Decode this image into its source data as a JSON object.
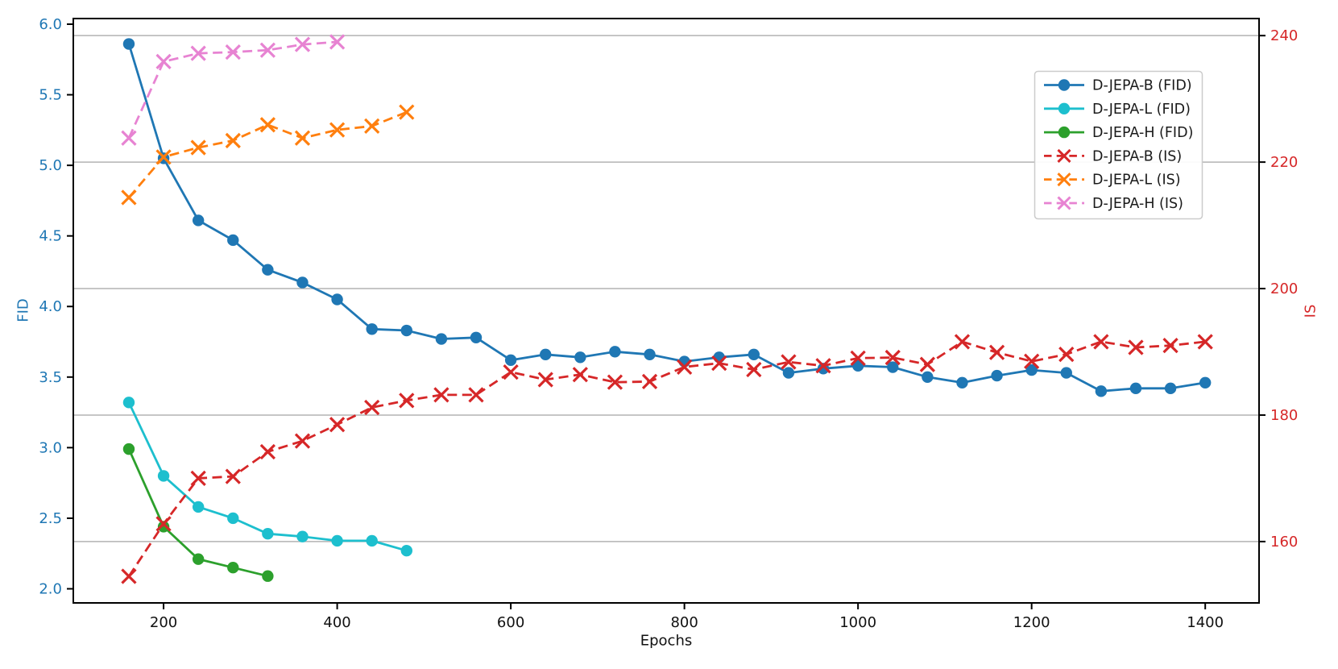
{
  "chart_data": {
    "type": "line",
    "title": "",
    "xlabel": "Epochs",
    "ylabel_left": "FID",
    "ylabel_right": "IS",
    "xlim": [
      96,
      1462
    ],
    "ylim_left": [
      1.9,
      6.04
    ],
    "ylim_right": [
      150.3,
      242.7
    ],
    "x_ticks": [
      200,
      400,
      600,
      800,
      1000,
      1200,
      1400
    ],
    "left_ticks": [
      "2.0",
      "2.5",
      "3.0",
      "3.5",
      "4.0",
      "4.5",
      "5.0",
      "5.5",
      "6.0"
    ],
    "right_ticks": [
      160,
      180,
      200,
      220,
      240
    ],
    "grid": "horizontal gridlines aligned to right-axis (IS) ticks",
    "colors": {
      "left_axis": "#1f77b4",
      "right_axis": "#d62728",
      "grid": "#b3b3b3",
      "spine": "#000000",
      "tick_label_x": "#111111",
      "legend_border": "#cccccc"
    },
    "series": [
      {
        "name": "D-JEPA-B (FID)",
        "axis": "left",
        "color": "#1f77b4",
        "line_style": "solid",
        "marker": "circle",
        "epochs": [
          160,
          200,
          240,
          280,
          320,
          360,
          400,
          440,
          480,
          520,
          560,
          600,
          640,
          680,
          720,
          760,
          800,
          840,
          880,
          920,
          960,
          1000,
          1040,
          1080,
          1120,
          1160,
          1200,
          1240,
          1280,
          1320,
          1360,
          1400
        ],
        "values": [
          5.86,
          5.05,
          4.61,
          4.47,
          4.26,
          4.17,
          4.05,
          3.84,
          3.83,
          3.77,
          3.78,
          3.62,
          3.66,
          3.64,
          3.68,
          3.66,
          3.61,
          3.64,
          3.66,
          3.53,
          3.56,
          3.58,
          3.57,
          3.5,
          3.46,
          3.51,
          3.55,
          3.53,
          3.4,
          3.42,
          3.42,
          3.46
        ]
      },
      {
        "name": "D-JEPA-L (FID)",
        "axis": "left",
        "color": "#1dbfce",
        "line_style": "solid",
        "marker": "circle",
        "epochs": [
          160,
          200,
          240,
          280,
          320,
          360,
          400,
          440,
          480
        ],
        "values": [
          3.32,
          2.8,
          2.58,
          2.5,
          2.39,
          2.37,
          2.34,
          2.34,
          2.27
        ]
      },
      {
        "name": "D-JEPA-H (FID)",
        "axis": "left",
        "color": "#2ca02c",
        "line_style": "solid",
        "marker": "circle",
        "epochs": [
          160,
          200,
          240,
          280,
          320
        ],
        "values": [
          2.99,
          2.44,
          2.21,
          2.15,
          2.09
        ]
      },
      {
        "name": "D-JEPA-B (IS)",
        "axis": "right",
        "color": "#d62728",
        "line_style": "dashed",
        "marker": "x",
        "epochs": [
          160,
          200,
          240,
          280,
          320,
          360,
          400,
          440,
          480,
          520,
          560,
          600,
          640,
          680,
          720,
          760,
          800,
          840,
          880,
          920,
          960,
          1000,
          1040,
          1080,
          1120,
          1160,
          1200,
          1240,
          1280,
          1320,
          1360,
          1400
        ],
        "values": [
          154.5,
          162.8,
          170.0,
          170.3,
          174.2,
          175.9,
          178.5,
          181.2,
          182.3,
          183.2,
          183.2,
          186.8,
          185.6,
          186.4,
          185.2,
          185.3,
          187.6,
          188.2,
          187.2,
          188.4,
          187.8,
          189.0,
          189.1,
          188.0,
          191.6,
          189.9,
          188.5,
          189.6,
          191.6,
          190.7,
          191.0,
          191.6
        ]
      },
      {
        "name": "D-JEPA-L (IS)",
        "axis": "right",
        "color": "#ff7f0e",
        "line_style": "dashed",
        "marker": "x",
        "epochs": [
          160,
          200,
          240,
          280,
          320,
          360,
          400,
          440,
          480
        ],
        "values": [
          214.4,
          220.8,
          222.3,
          223.4,
          225.9,
          223.8,
          225.1,
          225.7,
          227.9
        ]
      },
      {
        "name": "D-JEPA-H (IS)",
        "axis": "right",
        "color": "#e783d2",
        "line_style": "dashed",
        "marker": "x",
        "epochs": [
          160,
          200,
          240,
          280,
          320,
          360,
          400
        ],
        "values": [
          223.8,
          235.9,
          237.2,
          237.4,
          237.7,
          238.6,
          239.0
        ]
      }
    ],
    "legend": {
      "position": "upper right",
      "entries": [
        "D-JEPA-B (FID)",
        "D-JEPA-L (FID)",
        "D-JEPA-H (FID)",
        "D-JEPA-B (IS)",
        "D-JEPA-L (IS)",
        "D-JEPA-H (IS)"
      ]
    }
  }
}
